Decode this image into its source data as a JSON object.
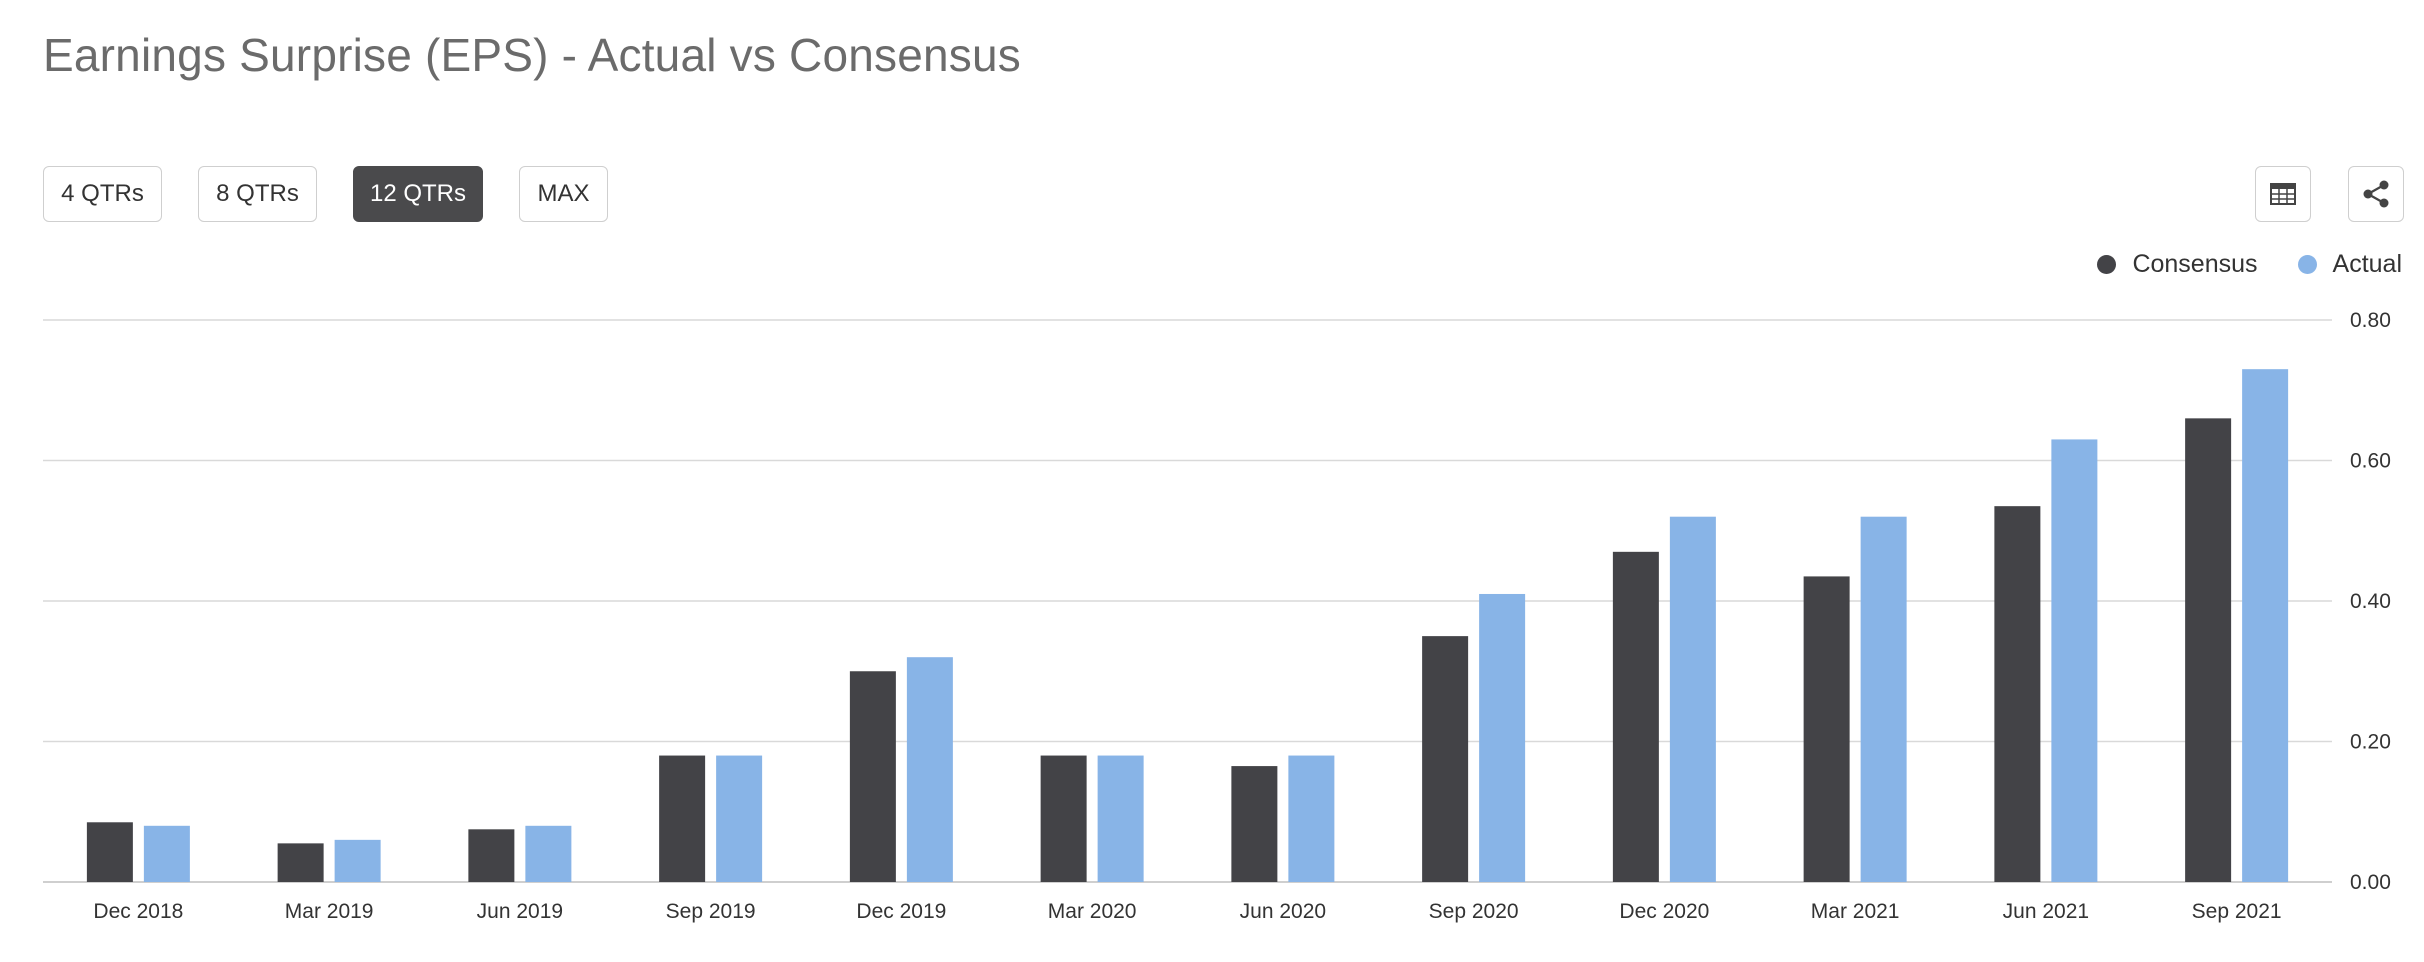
{
  "header": {
    "title": "Earnings Surprise (EPS) - Actual vs Consensus"
  },
  "range_buttons": [
    {
      "label": "4 QTRs",
      "active": false
    },
    {
      "label": "8 QTRs",
      "active": false
    },
    {
      "label": "12 QTRs",
      "active": true
    },
    {
      "label": "MAX",
      "active": false
    }
  ],
  "toolbar": {
    "table_icon": "table-icon",
    "share_icon": "share-icon"
  },
  "colors": {
    "consensus": "#434347",
    "actual": "#88b4e7",
    "grid": "#d9d9d9",
    "active_button": "#4a4a4c"
  },
  "chart_data": {
    "type": "bar",
    "title": "Earnings Surprise (EPS) - Actual vs Consensus",
    "xlabel": "",
    "ylabel": "",
    "categories": [
      "Dec 2018",
      "Mar 2019",
      "Jun 2019",
      "Sep 2019",
      "Dec 2019",
      "Mar 2020",
      "Jun 2020",
      "Sep 2020",
      "Dec 2020",
      "Mar 2021",
      "Jun 2021",
      "Sep 2021"
    ],
    "series": [
      {
        "name": "Consensus",
        "values": [
          0.085,
          0.055,
          0.075,
          0.18,
          0.3,
          0.18,
          0.165,
          0.35,
          0.47,
          0.435,
          0.535,
          0.66
        ]
      },
      {
        "name": "Actual",
        "values": [
          0.08,
          0.06,
          0.08,
          0.18,
          0.32,
          0.18,
          0.18,
          0.41,
          0.52,
          0.52,
          0.63,
          0.73
        ]
      }
    ],
    "ylim": [
      0,
      0.8
    ],
    "yticks": [
      0,
      0.2,
      0.4,
      0.6,
      0.8
    ],
    "ytick_labels": [
      "0.00",
      "0.20",
      "0.40",
      "0.60",
      "0.80"
    ],
    "grid": true,
    "y_axis_side": "right",
    "legend": {
      "position": "top-right",
      "entries": [
        "Consensus",
        "Actual"
      ]
    }
  }
}
